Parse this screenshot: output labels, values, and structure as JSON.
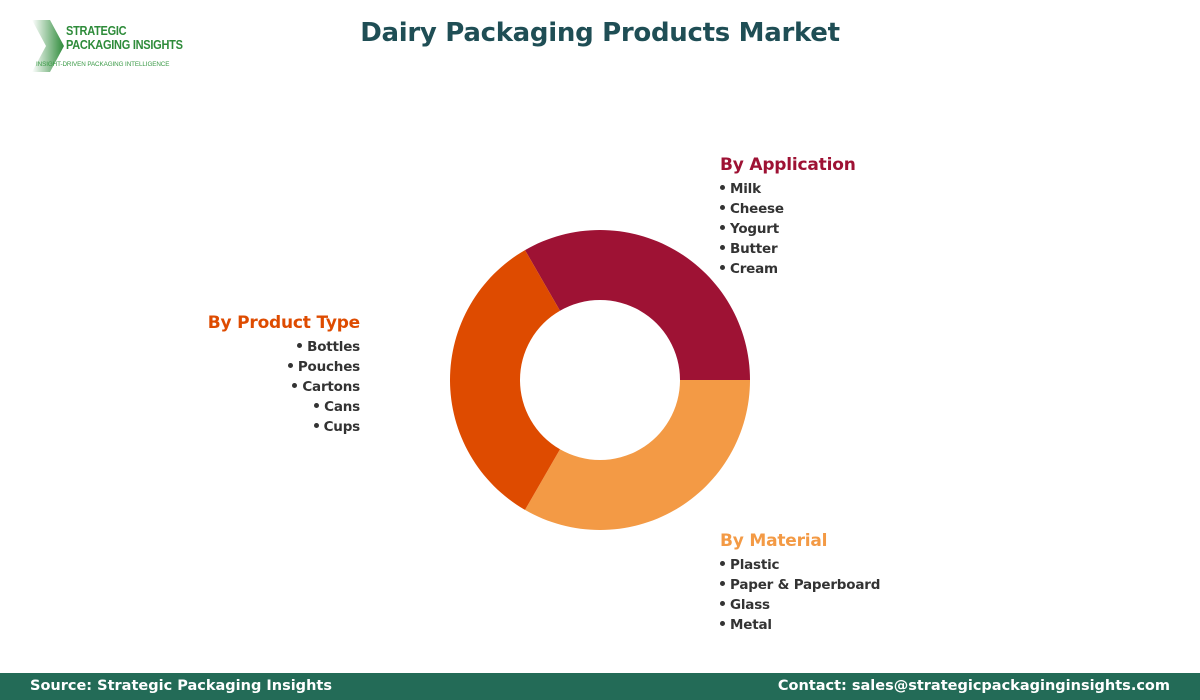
{
  "logo": {
    "line1": "STRATEGIC",
    "line2": "PACKAGING INSIGHTS",
    "tagline": "INSIGHT-DRIVEN PACKAGING INTELLIGENCE",
    "color": "#2e8b3a"
  },
  "title": "Dairy Packaging Products Market",
  "chart_data": {
    "type": "pie",
    "variant": "donut",
    "title": "Dairy Packaging Products Market",
    "center": [
      600,
      380
    ],
    "outer_radius": 150,
    "inner_radius": 80,
    "segments": [
      {
        "name": "By Application",
        "value": 33.3,
        "color": "#9e1234",
        "start_deg": 240,
        "end_deg": 360
      },
      {
        "name": "By Material",
        "value": 33.3,
        "color": "#f39a45",
        "start_deg": 0,
        "end_deg": 120
      },
      {
        "name": "By Product Type",
        "value": 33.3,
        "color": "#de4b00",
        "start_deg": 120,
        "end_deg": 240
      }
    ],
    "legend_position": "around"
  },
  "groups": {
    "application": {
      "heading": "By Application",
      "color": "#9e1234",
      "items": [
        "Milk",
        "Cheese",
        "Yogurt",
        "Butter",
        "Cream"
      ]
    },
    "product_type": {
      "heading": "By Product Type",
      "color": "#de4b00",
      "items": [
        "Bottles",
        "Pouches",
        "Cartons",
        "Cans",
        "Cups"
      ]
    },
    "material": {
      "heading": "By Material",
      "color": "#f39a45",
      "items": [
        "Plastic",
        "Paper & Paperboard",
        "Glass",
        "Metal"
      ]
    }
  },
  "footer": {
    "source": "Source: Strategic Packaging Insights",
    "contact": "Contact: sales@strategicpackaginginsights.com",
    "background": "#236b57"
  }
}
